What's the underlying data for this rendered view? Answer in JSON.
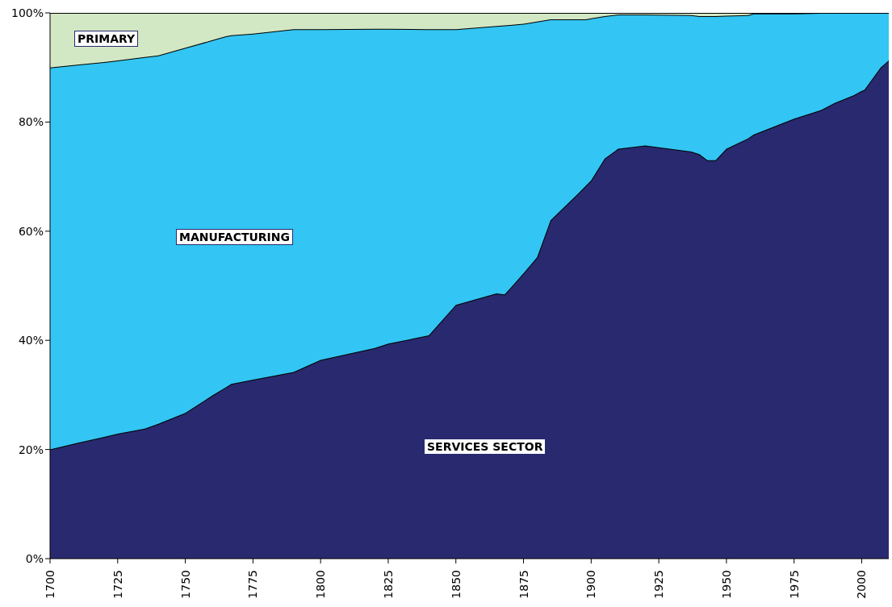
{
  "chart_data": {
    "type": "area",
    "stacked": true,
    "x": [
      1700,
      1710,
      1720,
      1725,
      1735,
      1740,
      1750,
      1760,
      1765,
      1767,
      1775,
      1790,
      1800,
      1820,
      1825,
      1840,
      1850,
      1865,
      1868,
      1870,
      1875,
      1880,
      1885,
      1895,
      1898,
      1900,
      1905,
      1910,
      1920,
      1937,
      1940,
      1943,
      1946,
      1950,
      1958,
      1960,
      1975,
      1985,
      1990,
      1997,
      2000,
      2001,
      2007,
      2010
    ],
    "series": [
      {
        "name": "SERVICES SECTOR",
        "color": "#29296f",
        "values": [
          20.0,
          21.2,
          22.3,
          22.9,
          23.8,
          24.7,
          26.7,
          29.9,
          31.4,
          32.0,
          32.8,
          34.2,
          36.4,
          38.6,
          39.4,
          40.9,
          46.5,
          48.6,
          48.4,
          49.5,
          52.3,
          55.2,
          62.0,
          66.8,
          68.3,
          69.3,
          73.3,
          75.1,
          75.7,
          74.6,
          74.1,
          73.0,
          73.0,
          75.1,
          77.0,
          77.7,
          80.6,
          82.2,
          83.5,
          84.9,
          85.7,
          85.9,
          90.0,
          91.3
        ]
      },
      {
        "name": "MANUFACTURING",
        "color": "#33c5f3",
        "values": [
          70.0,
          69.3,
          68.7,
          68.4,
          68.1,
          67.5,
          66.9,
          65.1,
          64.3,
          63.9,
          63.4,
          62.8,
          60.6,
          58.5,
          57.7,
          56.1,
          50.5,
          49.0,
          49.3,
          48.3,
          45.7,
          43.2,
          36.8,
          32.0,
          30.5,
          29.7,
          26.1,
          24.6,
          24.0,
          25.0,
          25.3,
          26.4,
          26.4,
          24.4,
          22.6,
          22.2,
          19.3,
          17.8,
          16.5,
          15.1,
          14.3,
          14.1,
          10.0,
          8.7
        ]
      },
      {
        "name": "PRIMARY",
        "color": "#d2e8c4",
        "values": [
          10.0,
          9.5,
          9.0,
          8.7,
          8.1,
          7.8,
          6.4,
          5.0,
          4.3,
          4.1,
          3.8,
          3.0,
          3.0,
          2.9,
          2.9,
          3.0,
          3.0,
          2.4,
          2.3,
          2.2,
          2.0,
          1.6,
          1.2,
          1.2,
          1.2,
          1.0,
          0.6,
          0.3,
          0.3,
          0.4,
          0.6,
          0.6,
          0.6,
          0.5,
          0.4,
          0.1,
          0.1,
          0,
          0,
          0,
          0,
          0,
          0,
          0
        ]
      }
    ],
    "xlim": [
      1700,
      2010
    ],
    "xticks": [
      1700,
      1725,
      1750,
      1775,
      1800,
      1825,
      1850,
      1875,
      1900,
      1925,
      1950,
      1975,
      2000
    ],
    "ylim": [
      0,
      100
    ],
    "yticks": [
      {
        "value": 0,
        "label": "0%"
      },
      {
        "value": 20,
        "label": "20%"
      },
      {
        "value": 40,
        "label": "40%"
      },
      {
        "value": 60,
        "label": "60%"
      },
      {
        "value": 80,
        "label": "80%"
      },
      {
        "value": 100,
        "label": "100%"
      }
    ]
  }
}
